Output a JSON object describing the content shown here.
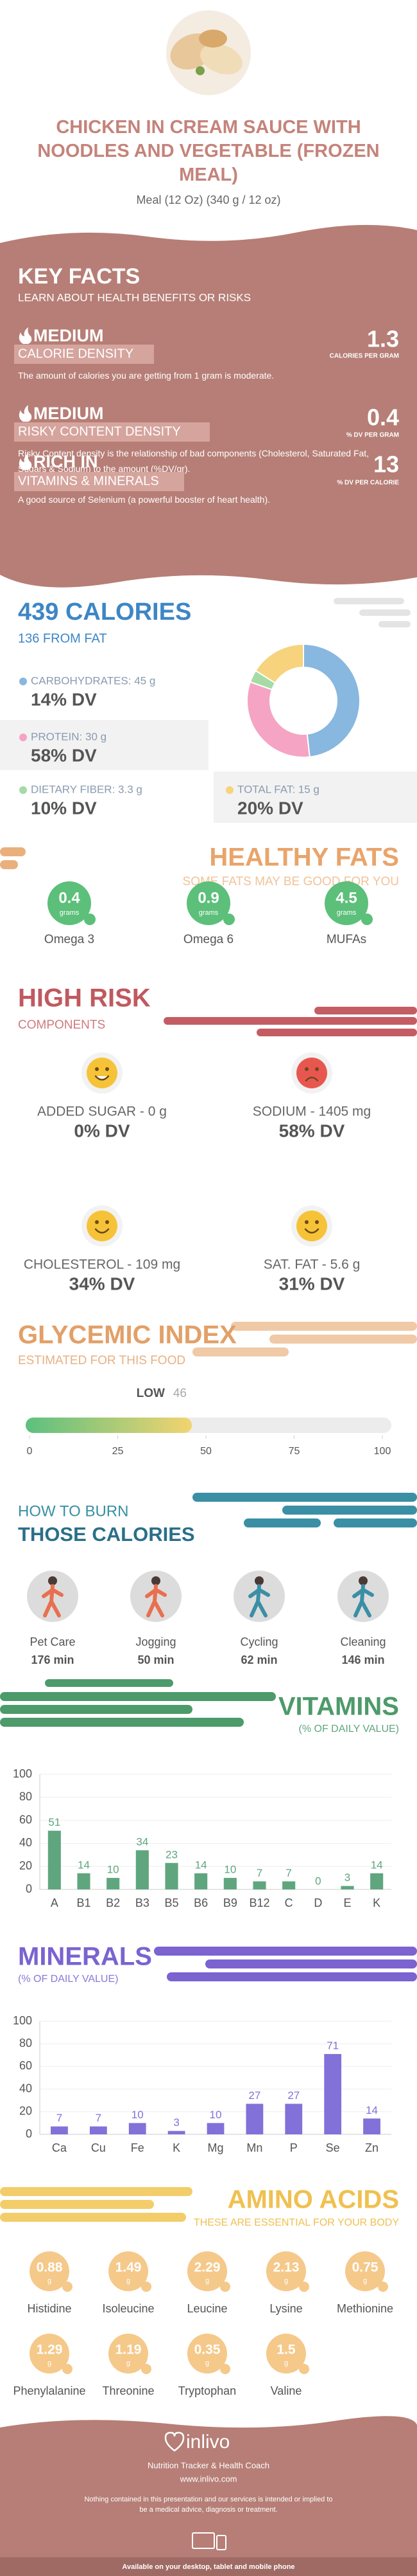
{
  "header": {
    "title": "CHICKEN IN CREAM SAUCE WITH NOODLES AND VEGETABLE (FROZEN MEAL)",
    "serving": "Meal (12 Oz) (340 g / 12 oz)"
  },
  "key_facts": {
    "title": "KEY FACTS",
    "subtitle": "LEARN ABOUT HEALTH BENEFITS OR RISKS",
    "items": [
      {
        "level": "MEDIUM",
        "name": "CALORIE DENSITY",
        "value": 1.3,
        "unit": "CALORIES PER GRAM",
        "description": "The amount of calories you are getting from 1 gram is moderate."
      },
      {
        "level": "MEDIUM",
        "name": "RISKY CONTENT DENSITY",
        "value": 0.4,
        "unit": "% DV PER GRAM",
        "description": "Risky Content density is the relationship of bad components (Cholesterol, Saturated Fat, Sugars & Sodium) to the amount (%DV/gr)."
      },
      {
        "level": "RICH IN",
        "name": "VITAMINS & MINERALS",
        "value": 13,
        "unit": "% DV PER CALORIE",
        "description": "A good source of Selenium (a powerful booster of heart health)."
      }
    ]
  },
  "calories": {
    "title": "439 CALORIES",
    "subtitle": "136 FROM FAT",
    "macros": [
      {
        "label": "CARBOHYDRATES: 45 g",
        "grams": 45,
        "dv": "14% DV",
        "color": "#88b7df"
      },
      {
        "label": "PROTEIN: 30 g",
        "grams": 30,
        "dv": "58% DV",
        "color": "#f5a4c3"
      },
      {
        "label": "DIETARY FIBER: 3.3 g",
        "grams": 3.3,
        "dv": "10% DV",
        "color": "#a6dba5"
      },
      {
        "label": "TOTAL FAT: 15 g",
        "grams": 15,
        "dv": "20% DV",
        "color": "#f6d37c"
      }
    ]
  },
  "healthy_fats": {
    "title": "HEALTHY FATS",
    "subtitle": "SOME FATS MAY BE GOOD FOR YOU",
    "items": [
      {
        "value": 0.4,
        "unit": "grams",
        "name": "Omega 3"
      },
      {
        "value": 0.9,
        "unit": "grams",
        "name": "Omega 6"
      },
      {
        "value": 4.5,
        "unit": "grams",
        "name": "MUFAs"
      }
    ]
  },
  "high_risk": {
    "title": "HIGH RISK",
    "subtitle": "COMPONENTS",
    "items": [
      {
        "label": "ADDED SUGAR - 0 g",
        "dv": "0% DV"
      },
      {
        "label": "SODIUM - 1405 mg",
        "dv": "58% DV"
      },
      {
        "label": "CHOLESTEROL - 109 mg",
        "dv": "34% DV"
      },
      {
        "label": "SAT. FAT - 5.6 g",
        "dv": "31% DV"
      }
    ]
  },
  "glycemic": {
    "title": "GLYCEMIC INDEX",
    "subtitle": "ESTIMATED FOR THIS FOOD",
    "level": "LOW",
    "value": 46,
    "xlim": [
      0,
      100
    ],
    "xticks": [
      0,
      25,
      50,
      75,
      100
    ]
  },
  "burn": {
    "title": "HOW TO BURN",
    "title2": "THOSE CALORIES",
    "activities": [
      {
        "name": "Pet Care",
        "time": "176 min"
      },
      {
        "name": "Jogging",
        "time": "50 min"
      },
      {
        "name": "Cycling",
        "time": "62 min"
      },
      {
        "name": "Cleaning",
        "time": "146 min"
      }
    ]
  },
  "chart_data": [
    {
      "type": "bar",
      "title": "VITAMINS",
      "subtitle": "(% OF DAILY VALUE)",
      "categories": [
        "A",
        "B1",
        "B2",
        "B3",
        "B5",
        "B6",
        "B9",
        "B12",
        "C",
        "D",
        "E",
        "K"
      ],
      "values": [
        51,
        14,
        10,
        34,
        23,
        14,
        10,
        7,
        7,
        0,
        3,
        14
      ],
      "color": "#5fa67e",
      "ylim": [
        0,
        100
      ],
      "yticks": [
        0,
        20,
        40,
        60,
        80,
        100
      ],
      "grid": true
    },
    {
      "type": "bar",
      "title": "MINERALS",
      "subtitle": "(% OF DAILY VALUE)",
      "categories": [
        "Ca",
        "Cu",
        "Fe",
        "K",
        "Mg",
        "Mn",
        "P",
        "Se",
        "Zn"
      ],
      "values": [
        7,
        7,
        10,
        3,
        10,
        27,
        27,
        71,
        14
      ],
      "color": "#8271d8",
      "ylim": [
        0,
        100
      ],
      "yticks": [
        0,
        20,
        40,
        60,
        80,
        100
      ],
      "grid": true
    }
  ],
  "amino_acids": {
    "title": "AMINO ACIDS",
    "subtitle": "THESE ARE ESSENTIAL FOR YOUR BODY",
    "items": [
      {
        "name": "Histidine",
        "value": 0.88,
        "unit": "g"
      },
      {
        "name": "Isoleucine",
        "value": 1.49,
        "unit": "g"
      },
      {
        "name": "Leucine",
        "value": 2.29,
        "unit": "g"
      },
      {
        "name": "Lysine",
        "value": 2.13,
        "unit": "g"
      },
      {
        "name": "Methionine",
        "value": 0.75,
        "unit": "g"
      },
      {
        "name": "Phenylalanine",
        "value": 1.29,
        "unit": "g"
      },
      {
        "name": "Threonine",
        "value": 1.19,
        "unit": "g"
      },
      {
        "name": "Tryptophan",
        "value": 0.35,
        "unit": "g"
      },
      {
        "name": "Valine",
        "value": 1.5,
        "unit": "g"
      }
    ]
  },
  "footer": {
    "brand": "inlivo",
    "tagline": "Nutrition Tracker & Health Coach",
    "url": "www.inlivo.com",
    "disclaimer": "Nothing contained in this presentation and our services is intended or implied to be a medical advice, diagnosis or treatment.",
    "available": "Available on your desktop, tablet and mobile phone"
  }
}
